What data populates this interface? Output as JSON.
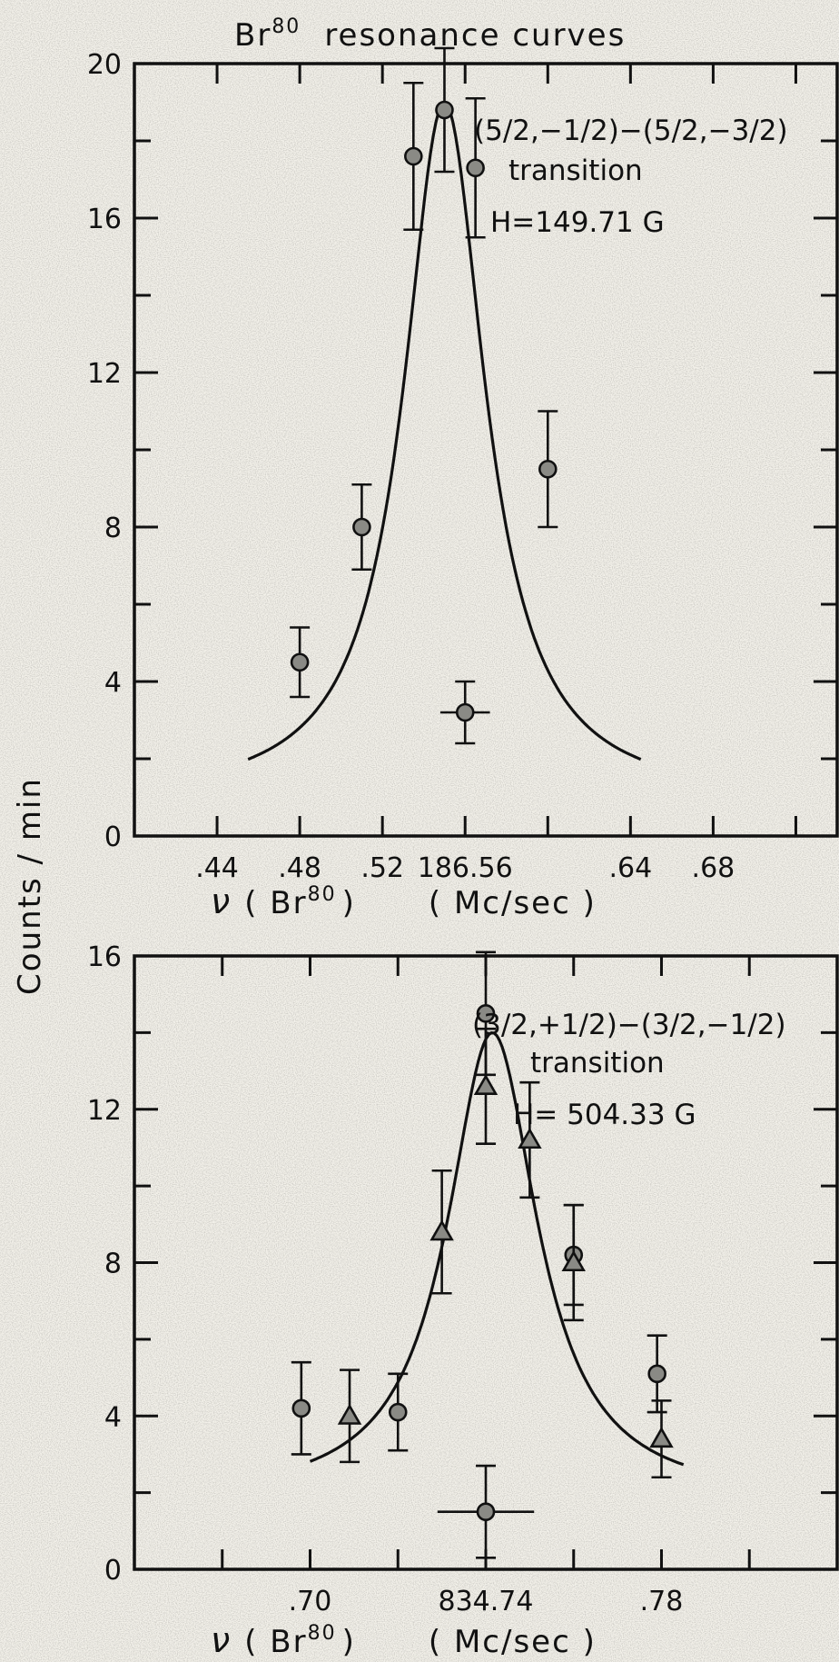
{
  "figure": {
    "title_prefix": "Br",
    "title_sup": "80",
    "title_suffix": "resonance curves",
    "ylabel": "Counts / min"
  },
  "chart_data": [
    {
      "type": "scatter",
      "title": "Br80 resonance curves",
      "xlabel_nu": "ν",
      "xlabel_species": "( Br",
      "xlabel_sup": "80",
      "xlabel_close": ")",
      "xlabel_unit": "( Mc/sec )",
      "ylabel": "Counts / min",
      "annotation": [
        "(5/2,−1/2)−(5/2,−3/2)",
        "transition",
        "H=149.71 G"
      ],
      "x_tick_labels": [
        ".44",
        ".48",
        ".52",
        "186.56",
        ".64",
        ".68"
      ],
      "x_tick_values": [
        186.44,
        186.48,
        186.52,
        186.56,
        186.64,
        186.68
      ],
      "xlim": [
        186.4,
        186.74
      ],
      "ylim": [
        0,
        20
      ],
      "y_tick_labels": [
        "0",
        "4",
        "8",
        "12",
        "16",
        "20"
      ],
      "y_tick_values": [
        0,
        4,
        8,
        12,
        16,
        20
      ],
      "grid": false,
      "series": [
        {
          "marker": "circle",
          "points": [
            {
              "x": 186.48,
              "y": 4.5,
              "yerr": 0.9
            },
            {
              "x": 186.51,
              "y": 8.0,
              "yerr": 1.1
            },
            {
              "x": 186.535,
              "y": 17.6,
              "yerr": 1.9
            },
            {
              "x": 186.55,
              "y": 18.8,
              "yerr": 1.6
            },
            {
              "x": 186.565,
              "y": 17.3,
              "yerr": 1.8
            },
            {
              "x": 186.6,
              "y": 9.5,
              "yerr": 1.5
            },
            {
              "x": 186.56,
              "y": 3.2,
              "yerr": 0.8,
              "xerr": 0.012
            }
          ]
        }
      ],
      "fit_curve": {
        "center": 186.55,
        "peak": 19.0,
        "baseline": 0.9,
        "hwhm": 0.024,
        "x_range": [
          186.455,
          186.645
        ]
      }
    },
    {
      "type": "scatter",
      "xlabel_nu": "ν",
      "xlabel_species": "( Br",
      "xlabel_sup": "80",
      "xlabel_close": ")",
      "xlabel_unit": "( Mc/sec )",
      "ylabel": "Counts / min",
      "annotation": [
        "(3/2,+1/2)−(3/2,−1/2)",
        "transition",
        "H= 504.33 G"
      ],
      "x_tick_labels": [
        ".70",
        "834.74",
        ".78"
      ],
      "x_tick_values": [
        834.7,
        834.74,
        834.78
      ],
      "xlim": [
        834.66,
        834.82
      ],
      "ylim": [
        0,
        16
      ],
      "y_tick_labels": [
        "0",
        "4",
        "8",
        "12",
        "16"
      ],
      "y_tick_values": [
        0,
        4,
        8,
        12,
        16
      ],
      "grid": false,
      "series": [
        {
          "marker": "circle",
          "points": [
            {
              "x": 834.698,
              "y": 4.2,
              "yerr": 1.2
            },
            {
              "x": 834.72,
              "y": 4.1,
              "yerr": 1.0
            },
            {
              "x": 834.74,
              "y": 14.5,
              "yerr": 1.6
            },
            {
              "x": 834.76,
              "y": 8.2,
              "yerr": 1.3
            },
            {
              "x": 834.779,
              "y": 5.1,
              "yerr": 1.0
            },
            {
              "x": 834.74,
              "y": 1.5,
              "yerr": 1.2,
              "xerr": 0.011
            }
          ]
        },
        {
          "marker": "triangle",
          "points": [
            {
              "x": 834.709,
              "y": 4.0,
              "yerr": 1.2
            },
            {
              "x": 834.73,
              "y": 8.8,
              "yerr": 1.6
            },
            {
              "x": 834.74,
              "y": 12.6,
              "yerr": 1.5
            },
            {
              "x": 834.75,
              "y": 11.2,
              "yerr": 1.5
            },
            {
              "x": 834.76,
              "y": 8.0,
              "yerr": 1.5
            },
            {
              "x": 834.78,
              "y": 3.4,
              "yerr": 1.0
            }
          ]
        }
      ],
      "fit_curve": {
        "center": 834.7415,
        "peak": 14.0,
        "baseline": 1.8,
        "hwhm": 0.0125,
        "x_range": [
          834.7,
          834.785
        ]
      }
    }
  ]
}
